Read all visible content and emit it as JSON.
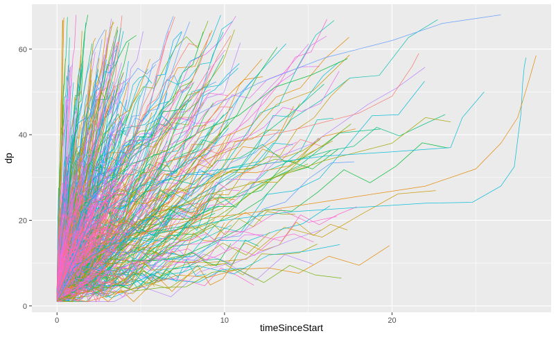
{
  "chart_data": {
    "type": "line",
    "title": "",
    "xlabel": "timeSinceStart",
    "ylabel": "dp",
    "xlim": [
      -1.5,
      29.5
    ],
    "ylim": [
      -1.5,
      70.5
    ],
    "x_ticks": [
      0,
      10,
      20
    ],
    "y_ticks": [
      0,
      20,
      40,
      60
    ],
    "x_tick_labels": [
      "0",
      "10",
      "20"
    ],
    "y_tick_labels": [
      "0",
      "20",
      "40",
      "60"
    ],
    "grid": true,
    "legend": "none",
    "colors": [
      "#F8766D",
      "#E58700",
      "#C99800",
      "#A3A500",
      "#6BB100",
      "#00BA38",
      "#00BF7D",
      "#00C0AF",
      "#00BCD8",
      "#00B0F6",
      "#619CFF",
      "#B983FF",
      "#E76BF3",
      "#FD61D1",
      "#FF67A4"
    ],
    "panel_background": "#EBEBEB",
    "grid_color": "#FFFFFF",
    "series_count": 420,
    "highlight_series": [
      {
        "color": "#00BCD8",
        "x": [
          0,
          1,
          3,
          6,
          10,
          14,
          18,
          22,
          24.8,
          26.5,
          27.3,
          27.7,
          27.8,
          27.9,
          28.0
        ],
        "y": [
          1,
          9,
          14,
          17,
          20,
          22,
          23,
          24,
          24.2,
          28,
          32.5,
          45,
          52,
          56,
          58
        ]
      },
      {
        "color": "#E58700",
        "x": [
          0,
          1.5,
          4,
          8,
          12,
          17,
          22,
          25,
          26.5,
          27.5,
          28.2,
          28.6
        ],
        "y": [
          1,
          10,
          16,
          20,
          22,
          25,
          28,
          32,
          38,
          44,
          53,
          58.5
        ]
      },
      {
        "color": "#A3A500",
        "x": [
          0,
          2,
          5,
          9,
          13,
          16,
          20,
          22,
          23.5
        ],
        "y": [
          1,
          13,
          20,
          26,
          30,
          34,
          38,
          44,
          43
        ]
      },
      {
        "color": "#619CFF",
        "x": [
          0,
          1.5,
          4,
          8,
          12,
          16,
          20,
          23,
          26.5
        ],
        "y": [
          3,
          22,
          35,
          44,
          52,
          58,
          62,
          66,
          68
        ]
      },
      {
        "color": "#00BCD8",
        "x": [
          0,
          2,
          5,
          8,
          12,
          16,
          20,
          23.5,
          24.2,
          25.5
        ],
        "y": [
          2,
          20,
          28,
          31,
          33,
          35,
          36,
          37,
          44,
          50
        ]
      },
      {
        "color": "#F8766D",
        "x": [
          0,
          1,
          3,
          6,
          10,
          14,
          18,
          20,
          21.2,
          21.6
        ],
        "y": [
          2,
          15,
          25,
          33,
          38,
          41,
          45,
          49,
          56,
          59
        ]
      }
    ]
  }
}
